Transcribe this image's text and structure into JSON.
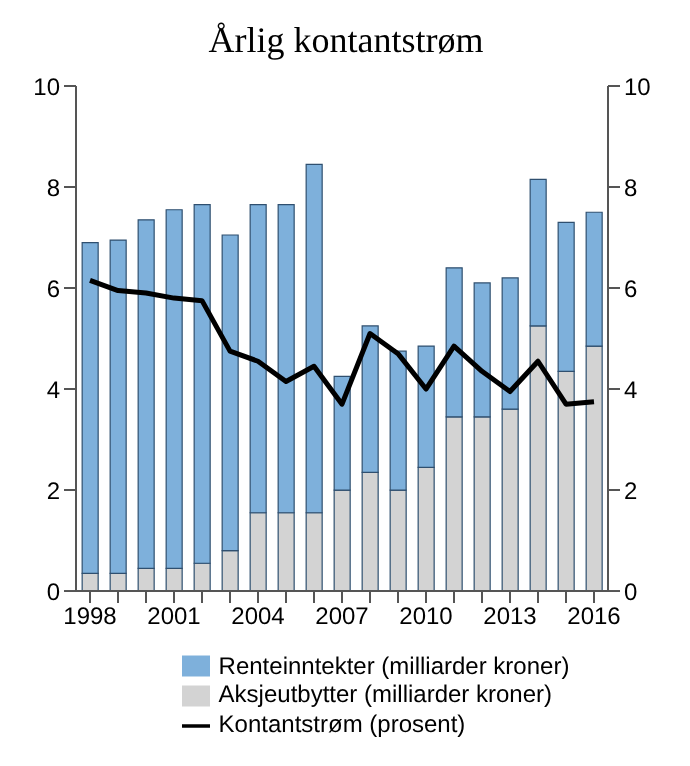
{
  "chart_data": {
    "type": "bar",
    "title": "Årlig kontantstrøm",
    "stacked": true,
    "categories": [
      "1998",
      null,
      null,
      "2001",
      null,
      null,
      "2004",
      null,
      null,
      "2007",
      null,
      null,
      "2010",
      null,
      null,
      "2013",
      null,
      null,
      "2016"
    ],
    "series": [
      {
        "name": "Aksjeutbytter (milliarder  kroner)",
        "color": "#d3d3d3",
        "values": [
          0.35,
          0.35,
          0.45,
          0.45,
          0.55,
          0.8,
          1.55,
          1.55,
          1.55,
          2.0,
          2.35,
          2.0,
          2.45,
          3.45,
          3.45,
          3.6,
          5.25,
          4.35,
          4.85
        ]
      },
      {
        "name": "Renteinntekter (milliarder kroner)",
        "color": "#7eb0db",
        "values": [
          6.55,
          6.6,
          6.9,
          7.1,
          7.1,
          6.25,
          6.1,
          6.1,
          6.9,
          2.25,
          2.9,
          2.75,
          2.4,
          2.95,
          2.65,
          2.6,
          2.9,
          2.95,
          2.65
        ]
      },
      {
        "name": "Kontantstrøm (prosent)",
        "type": "line",
        "color": "#000000",
        "values": [
          6.15,
          5.95,
          5.9,
          5.8,
          5.75,
          4.75,
          4.55,
          4.15,
          4.45,
          3.7,
          5.1,
          4.7,
          4.0,
          4.85,
          4.35,
          3.95,
          4.55,
          3.7,
          3.75
        ]
      }
    ],
    "ylim": [
      0,
      10
    ],
    "yticks": [
      0,
      2,
      4,
      6,
      8,
      10
    ],
    "y2lim": [
      0,
      10
    ],
    "y2ticks": [
      0,
      2,
      4,
      6,
      8,
      10
    ],
    "legend": "bottom",
    "marker": "none"
  }
}
